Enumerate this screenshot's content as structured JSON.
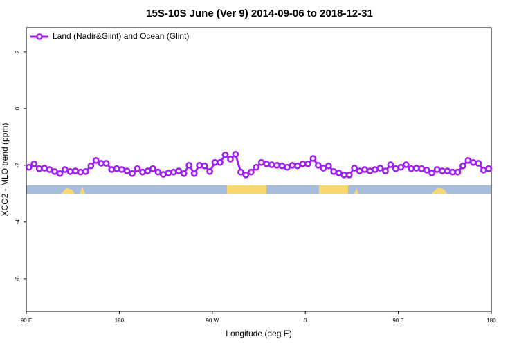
{
  "chart_data": {
    "type": "line",
    "title": "15S-10S June (Ver 9)   2014-09-06 to 2018-12-31",
    "x_label": "Longitude (deg E)",
    "y_label": "XCO2 - MLO trend (ppm)",
    "xlim": [
      90,
      540
    ],
    "ylim": [
      -7.15,
      2.85
    ],
    "xticks": [
      {
        "value": 90,
        "label": "90 E"
      },
      180,
      {
        "value": 270,
        "label": "90 W"
      },
      {
        "value": 360,
        "label": "0"
      },
      {
        "value": 450,
        "label": "90 E"
      },
      {
        "value": 540,
        "label": "180"
      }
    ],
    "yticks": [
      -6,
      -4,
      -2,
      0,
      2
    ],
    "legend": "top-left",
    "x": [
      92.5,
      97.5,
      102.5,
      107.5,
      112.5,
      117.5,
      122.5,
      127.5,
      132.5,
      137.5,
      142.5,
      147.5,
      152.5,
      157.5,
      162.5,
      167.5,
      172.5,
      177.5,
      182.5,
      187.5,
      192.5,
      197.5,
      202.5,
      207.5,
      212.5,
      217.5,
      222.5,
      227.5,
      232.5,
      237.5,
      242.5,
      247.5,
      252.5,
      257.5,
      262.5,
      267.5,
      272.5,
      277.5,
      282.5,
      287.5,
      292.5,
      297.5,
      302.5,
      307.5,
      312.5,
      317.5,
      322.5,
      327.5,
      332.5,
      337.5,
      342.5,
      347.5,
      352.5,
      357.5,
      362.5,
      367.5,
      372.5,
      377.5,
      382.5,
      387.5,
      392.5,
      397.5,
      402.5,
      407.5,
      412.5,
      417.5,
      422.5,
      427.5,
      432.5,
      437.5,
      442.5,
      447.5,
      452.5,
      457.5,
      462.5,
      467.5,
      472.5,
      477.5,
      482.5,
      487.5,
      492.5,
      497.5,
      502.5,
      507.5,
      512.5,
      517.5,
      522.5,
      527.5,
      532.5,
      537.5
    ],
    "series": [
      {
        "name": "Land (Nadir&Glint) and Ocean (Glint)",
        "color": "#a020f0",
        "values": [
          -2.07,
          -1.95,
          -2.12,
          -2.1,
          -2.15,
          -2.22,
          -2.29,
          -2.15,
          -2.22,
          -2.2,
          -2.24,
          -2.22,
          -2.02,
          -1.83,
          -1.93,
          -1.93,
          -2.15,
          -2.12,
          -2.15,
          -2.2,
          -2.29,
          -2.12,
          -2.24,
          -2.2,
          -2.12,
          -2.24,
          -2.32,
          -2.27,
          -2.24,
          -2.2,
          -2.29,
          -2.0,
          -2.29,
          -2.0,
          -2.02,
          -2.22,
          -1.9,
          -1.9,
          -1.63,
          -1.78,
          -1.61,
          -2.24,
          -2.34,
          -2.24,
          -2.07,
          -1.9,
          -1.95,
          -1.98,
          -2.0,
          -2.02,
          -2.07,
          -2.0,
          -2.02,
          -1.95,
          -1.95,
          -1.76,
          -2.0,
          -2.1,
          -2.02,
          -2.22,
          -2.27,
          -2.34,
          -2.34,
          -2.1,
          -2.2,
          -2.15,
          -2.2,
          -2.15,
          -2.1,
          -2.2,
          -1.98,
          -2.12,
          -2.07,
          -1.98,
          -2.12,
          -2.1,
          -2.12,
          -2.17,
          -2.27,
          -2.15,
          -2.2,
          -2.2,
          -2.24,
          -2.24,
          -2.02,
          -1.83,
          -1.9,
          -1.93,
          -2.17,
          -2.12
        ]
      }
    ]
  }
}
